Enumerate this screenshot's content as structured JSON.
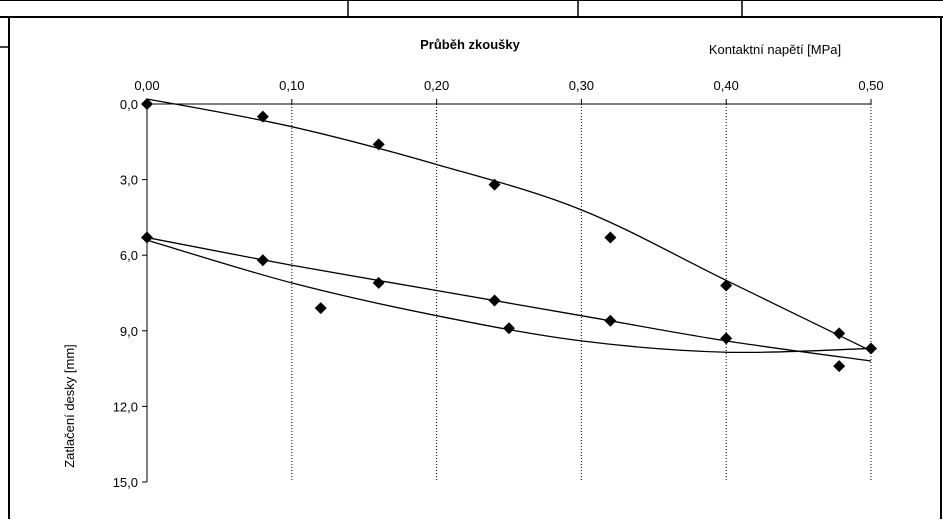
{
  "chart_data": {
    "type": "scatter",
    "title": "Průběh zkoušky",
    "xlabel": "Kontaktní napětí [MPa]",
    "ylabel": "Zatlačení desky [mm]",
    "x_axis_position": "top",
    "y_axis_inverted": true,
    "xlim": [
      0,
      0.5
    ],
    "ylim": [
      0,
      15
    ],
    "x_ticks": [
      "0,00",
      "0,10",
      "0,20",
      "0,30",
      "0,40",
      "0,50"
    ],
    "y_ticks": [
      "0,0",
      "3,0",
      "6,0",
      "9,0",
      "12,0",
      "15,0"
    ],
    "grid": "vertical dotted",
    "marker": "diamond",
    "series": [
      {
        "points": [
          [
            0.0,
            0.0
          ],
          [
            0.08,
            0.5
          ],
          [
            0.16,
            1.6
          ],
          [
            0.24,
            3.2
          ],
          [
            0.32,
            5.3
          ],
          [
            0.4,
            7.2
          ],
          [
            0.478,
            9.1
          ],
          [
            0.5,
            9.7
          ],
          [
            0.0,
            5.3
          ],
          [
            0.08,
            6.2
          ],
          [
            0.16,
            7.1
          ],
          [
            0.24,
            7.8
          ],
          [
            0.32,
            8.6
          ],
          [
            0.4,
            9.3
          ],
          [
            0.478,
            10.4
          ],
          [
            0.12,
            8.1
          ],
          [
            0.25,
            8.9
          ]
        ]
      }
    ],
    "trendlines": [
      {
        "type": "polynomial",
        "x_range": [
          0,
          0.5
        ],
        "points": [
          [
            0.0,
            -0.2
          ],
          [
            0.1,
            0.9
          ],
          [
            0.2,
            2.4
          ],
          [
            0.3,
            4.2
          ],
          [
            0.4,
            7.0
          ],
          [
            0.5,
            9.8
          ]
        ]
      },
      {
        "type": "polynomial",
        "x_range": [
          0,
          0.5
        ],
        "points": [
          [
            0.0,
            5.3
          ],
          [
            0.1,
            6.4
          ],
          [
            0.2,
            7.4
          ],
          [
            0.3,
            8.4
          ],
          [
            0.4,
            9.4
          ],
          [
            0.5,
            10.2
          ]
        ]
      },
      {
        "type": "polynomial",
        "x_range": [
          0,
          0.5
        ],
        "points": [
          [
            0.0,
            5.4
          ],
          [
            0.1,
            7.1
          ],
          [
            0.2,
            8.4
          ],
          [
            0.3,
            9.4
          ],
          [
            0.4,
            9.85
          ],
          [
            0.5,
            9.7
          ]
        ]
      }
    ]
  }
}
